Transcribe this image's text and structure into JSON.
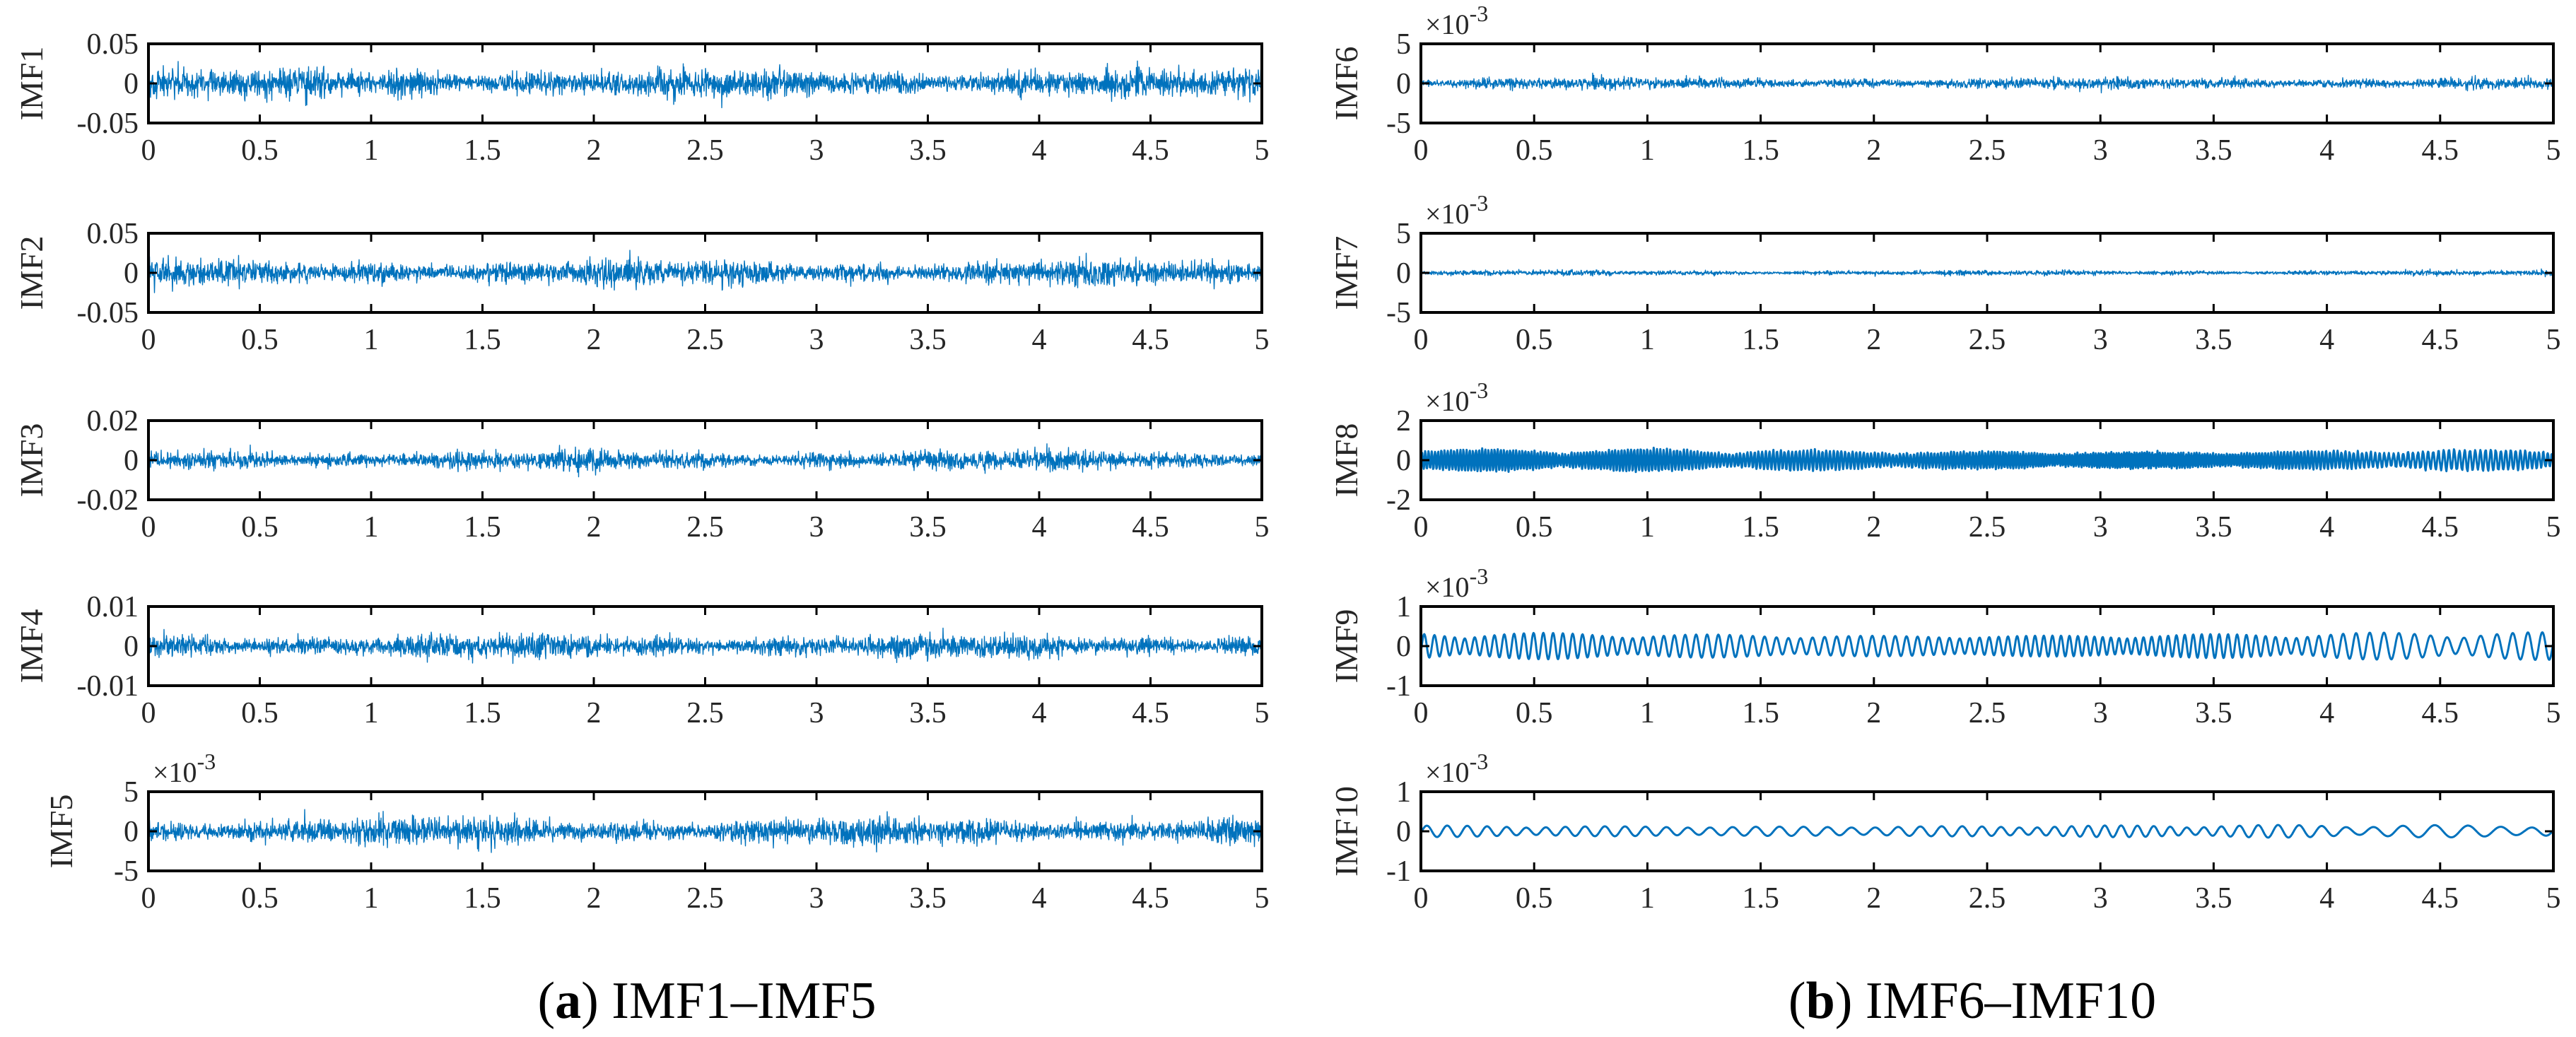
{
  "figure": {
    "captions": {
      "left": {
        "label": "a",
        "text": "IMF1–IMF5"
      },
      "right": {
        "label": "b",
        "text": "IMF6–IMF10"
      }
    },
    "line_color": "#0072BD"
  },
  "chart_data": [
    {
      "type": "line",
      "panel": "a",
      "title": "",
      "ylabel": "IMF1",
      "xlabel": "",
      "xlim": [
        0,
        5
      ],
      "ylim": [
        -0.05,
        0.05
      ],
      "xticks": [
        "0",
        "0.5",
        "1",
        "1.5",
        "2",
        "2.5",
        "3",
        "3.5",
        "4",
        "4.5",
        "5"
      ],
      "yticks": [
        "0.05",
        "0",
        "-0.05"
      ],
      "multiplier": "",
      "signal": {
        "kind": "noise",
        "amplitude": 0.034,
        "frequency_hz": 0
      }
    },
    {
      "type": "line",
      "panel": "a",
      "title": "",
      "ylabel": "IMF2",
      "xlabel": "",
      "xlim": [
        0,
        5
      ],
      "ylim": [
        -0.05,
        0.05
      ],
      "xticks": [
        "0",
        "0.5",
        "1",
        "1.5",
        "2",
        "2.5",
        "3",
        "3.5",
        "4",
        "4.5",
        "5"
      ],
      "yticks": [
        "0.05",
        "0",
        "-0.05"
      ],
      "multiplier": "",
      "signal": {
        "kind": "noise",
        "amplitude": 0.03,
        "frequency_hz": 0
      }
    },
    {
      "type": "line",
      "panel": "a",
      "title": "",
      "ylabel": "IMF3",
      "xlabel": "",
      "xlim": [
        0,
        5
      ],
      "ylim": [
        -0.02,
        0.02
      ],
      "xticks": [
        "0",
        "0.5",
        "1",
        "1.5",
        "2",
        "2.5",
        "3",
        "3.5",
        "4",
        "4.5",
        "5"
      ],
      "yticks": [
        "0.02",
        "0",
        "-0.02"
      ],
      "multiplier": "",
      "signal": {
        "kind": "noise",
        "amplitude": 0.009,
        "frequency_hz": 0
      }
    },
    {
      "type": "line",
      "panel": "a",
      "title": "",
      "ylabel": "IMF4",
      "xlabel": "",
      "xlim": [
        0,
        5
      ],
      "ylim": [
        -0.01,
        0.01
      ],
      "xticks": [
        "0",
        "0.5",
        "1",
        "1.5",
        "2",
        "2.5",
        "3",
        "3.5",
        "4",
        "4.5",
        "5"
      ],
      "yticks": [
        "0.01",
        "0",
        "-0.01"
      ],
      "multiplier": "",
      "signal": {
        "kind": "noise",
        "amplitude": 0.0055,
        "frequency_hz": 0
      }
    },
    {
      "type": "line",
      "panel": "a",
      "title": "",
      "ylabel": "IMF5",
      "xlabel": "",
      "xlim": [
        0,
        5
      ],
      "ylim": [
        -5,
        5
      ],
      "xticks": [
        "0",
        "0.5",
        "1",
        "1.5",
        "2",
        "2.5",
        "3",
        "3.5",
        "4",
        "4.5",
        "5"
      ],
      "yticks": [
        "5",
        "0",
        "-5"
      ],
      "multiplier": "×10^-3",
      "signal": {
        "kind": "noise",
        "amplitude": 3.2,
        "frequency_hz": 0
      }
    },
    {
      "type": "line",
      "panel": "b",
      "title": "",
      "ylabel": "IMF6",
      "xlabel": "",
      "xlim": [
        0,
        5
      ],
      "ylim": [
        -5,
        5
      ],
      "xticks": [
        "0",
        "0.5",
        "1",
        "1.5",
        "2",
        "2.5",
        "3",
        "3.5",
        "4",
        "4.5",
        "5"
      ],
      "yticks": [
        "5",
        "0",
        "-5"
      ],
      "multiplier": "×10^-3",
      "signal": {
        "kind": "noise",
        "amplitude": 1.4,
        "frequency_hz": 0
      }
    },
    {
      "type": "line",
      "panel": "b",
      "title": "",
      "ylabel": "IMF7",
      "xlabel": "",
      "xlim": [
        0,
        5
      ],
      "ylim": [
        -5,
        5
      ],
      "xticks": [
        "0",
        "0.5",
        "1",
        "1.5",
        "2",
        "2.5",
        "3",
        "3.5",
        "4",
        "4.5",
        "5"
      ],
      "yticks": [
        "5",
        "0",
        "-5"
      ],
      "multiplier": "×10^-3",
      "signal": {
        "kind": "noise",
        "amplitude": 0.6,
        "frequency_hz": 0
      }
    },
    {
      "type": "line",
      "panel": "b",
      "title": "",
      "ylabel": "IMF8",
      "xlabel": "",
      "xlim": [
        0,
        5
      ],
      "ylim": [
        -2,
        2
      ],
      "xticks": [
        "0",
        "0.5",
        "1",
        "1.5",
        "2",
        "2.5",
        "3",
        "3.5",
        "4",
        "4.5",
        "5"
      ],
      "yticks": [
        "2",
        "0",
        "-2"
      ],
      "multiplier": "×10^-3",
      "signal": {
        "kind": "oscillation",
        "amplitude": 0.55,
        "frequency_hz": 70
      }
    },
    {
      "type": "line",
      "panel": "b",
      "title": "",
      "ylabel": "IMF9",
      "xlabel": "",
      "xlim": [
        0,
        5
      ],
      "ylim": [
        -1,
        1
      ],
      "xticks": [
        "0",
        "0.5",
        "1",
        "1.5",
        "2",
        "2.5",
        "3",
        "3.5",
        "4",
        "4.5",
        "5"
      ],
      "yticks": [
        "1",
        "0",
        "-1"
      ],
      "multiplier": "×10^-3",
      "signal": {
        "kind": "oscillation",
        "amplitude": 0.35,
        "frequency_hz": 22
      }
    },
    {
      "type": "line",
      "panel": "b",
      "title": "",
      "ylabel": "IMF10",
      "xlabel": "",
      "xlim": [
        0,
        5
      ],
      "ylim": [
        -1,
        1
      ],
      "xticks": [
        "0",
        "0.5",
        "1",
        "1.5",
        "2",
        "2.5",
        "3",
        "3.5",
        "4",
        "4.5",
        "5"
      ],
      "yticks": [
        "1",
        "0",
        "-1"
      ],
      "multiplier": "×10^-3",
      "signal": {
        "kind": "oscillation",
        "amplitude": 0.16,
        "frequency_hz": 11
      }
    }
  ]
}
